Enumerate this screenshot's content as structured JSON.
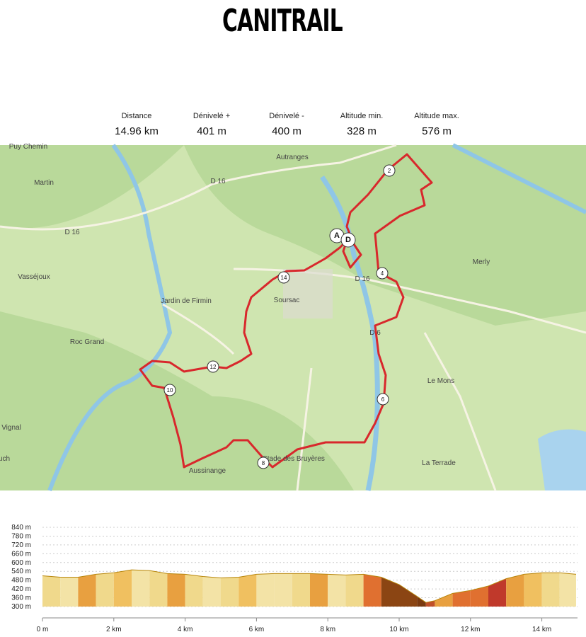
{
  "header": {
    "title": "CANITRAIL"
  },
  "stats": [
    {
      "label": "Distance",
      "value": "14.96 km"
    },
    {
      "label": "Dénivelé +",
      "value": "401 m"
    },
    {
      "label": "Dénivelé -",
      "value": "400 m"
    },
    {
      "label": "Altitude min.",
      "value": "328 m"
    },
    {
      "label": "Altitude max.",
      "value": "576 m"
    }
  ],
  "map": {
    "labels": [
      "Puy Chemin",
      "Martin",
      "Autranges",
      "D 16",
      "D 16",
      "Vasséjoux",
      "Jardin de Firmin",
      "Soursac",
      "Merly",
      "D 16",
      "D 6",
      "Roc Grand",
      "Le Mons",
      "Vignal",
      "uch",
      "Aussinange",
      "Stade des Bruyères",
      "La Terrade"
    ],
    "markers": [
      "2",
      "4",
      "6",
      "8",
      "10",
      "12",
      "14",
      "A",
      "D"
    ]
  },
  "chart_data": {
    "type": "area",
    "xlim": [
      0,
      15
    ],
    "ylim": [
      300,
      840
    ],
    "xticks": [
      {
        "value": 0,
        "label": "0 m"
      },
      {
        "value": 2,
        "label": "2 km"
      },
      {
        "value": 4,
        "label": "4 km"
      },
      {
        "value": 6,
        "label": "6 km"
      },
      {
        "value": 8,
        "label": "8 km"
      },
      {
        "value": 10,
        "label": "10 km"
      },
      {
        "value": 12,
        "label": "12 km"
      },
      {
        "value": 14,
        "label": "14 km"
      }
    ],
    "yticks": [
      {
        "value": 300,
        "label": "300 m"
      },
      {
        "value": 360,
        "label": "360 m"
      },
      {
        "value": 420,
        "label": "420 m"
      },
      {
        "value": 480,
        "label": "480 m"
      },
      {
        "value": 540,
        "label": "540 m"
      },
      {
        "value": 600,
        "label": "600 m"
      },
      {
        "value": 660,
        "label": "660 m"
      },
      {
        "value": 720,
        "label": "720 m"
      },
      {
        "value": 780,
        "label": "780 m"
      },
      {
        "value": 840,
        "label": "840 m"
      }
    ],
    "grid": true,
    "x": [
      0,
      0.5,
      1,
      1.5,
      2,
      2.5,
      3,
      3.5,
      4,
      4.5,
      5,
      5.5,
      6,
      6.5,
      7,
      7.5,
      8,
      8.5,
      9,
      9.5,
      10,
      10.5,
      10.75,
      11,
      11.5,
      12,
      12.5,
      13,
      13.5,
      14,
      14.5,
      14.96
    ],
    "values": [
      510,
      500,
      500,
      520,
      530,
      550,
      545,
      525,
      520,
      505,
      495,
      500,
      520,
      525,
      525,
      525,
      520,
      515,
      520,
      500,
      450,
      370,
      328,
      340,
      390,
      410,
      440,
      490,
      520,
      530,
      530,
      520
    ],
    "colors": [
      "#f0d98c",
      "#f3e3a6",
      "#e8a040",
      "#f0d98c",
      "#f0c060",
      "#f3e3a6",
      "#f0d98c",
      "#e8a040",
      "#f0d98c",
      "#f3e3a6",
      "#f0d98c",
      "#f0c060",
      "#f3e3a6",
      "#f3e3a6",
      "#f0d98c",
      "#e8a040",
      "#f3e3a6",
      "#f0d98c",
      "#e07030",
      "#8b4513",
      "#8b4513",
      "#7a3a10",
      "#c0502a",
      "#e8a040",
      "#e07030",
      "#e07030",
      "#c0392b",
      "#e8a040",
      "#f0c060",
      "#f0d98c",
      "#f3e3a6"
    ]
  }
}
